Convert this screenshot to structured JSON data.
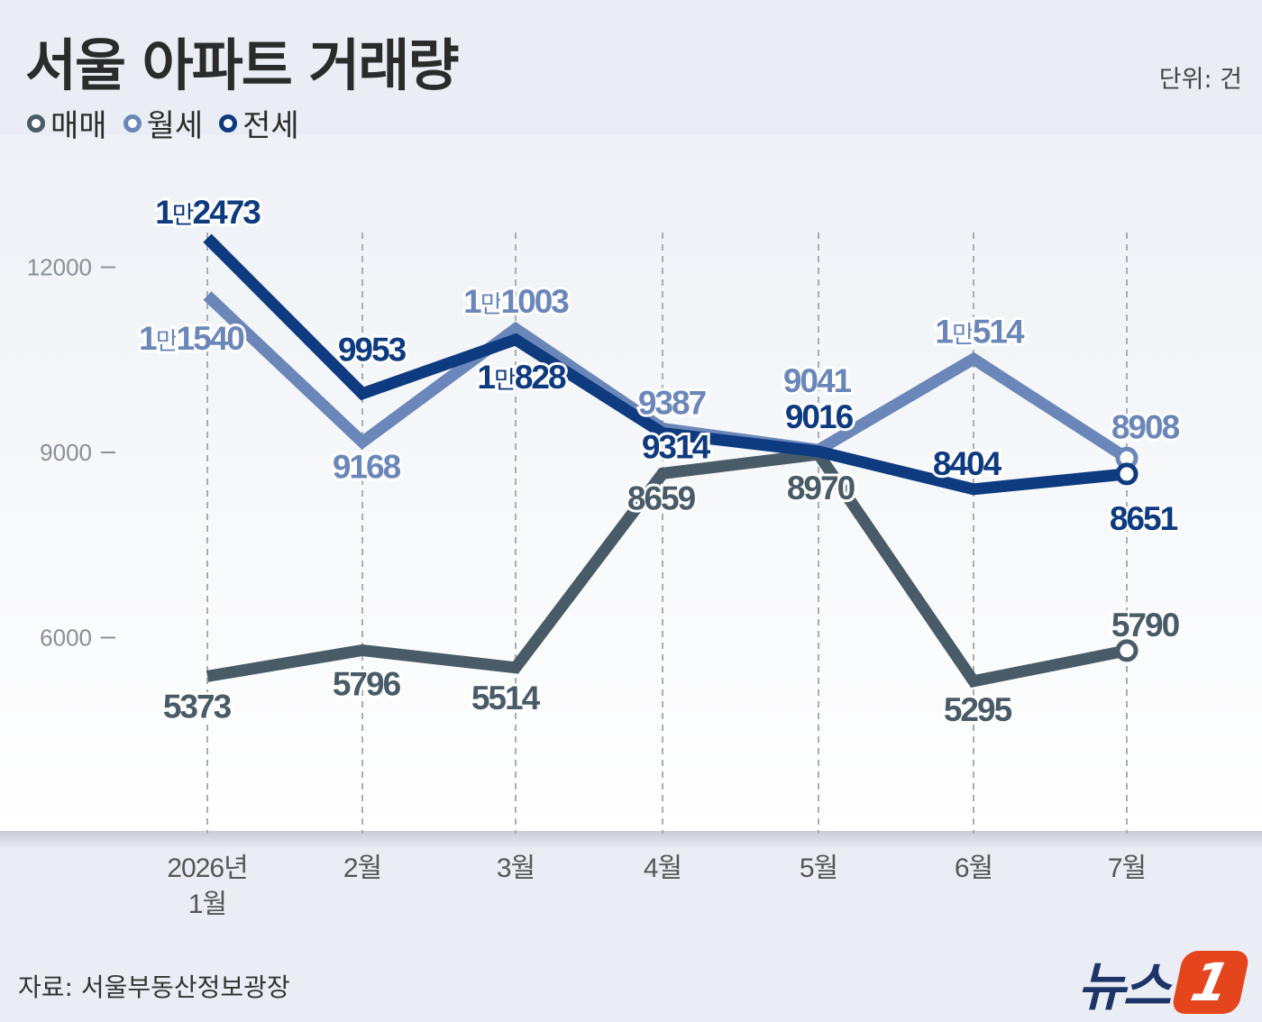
{
  "title": "서울 아파트 거래량",
  "unit_label": "단위: 건",
  "source": "자료: 서울부동산정보광장",
  "logo": {
    "text": "뉴스",
    "badge": "1"
  },
  "legend": [
    {
      "label": "매매",
      "color": "#485b66"
    },
    {
      "label": "월세",
      "color": "#6b87ba"
    },
    {
      "label": "전세",
      "color": "#0e3a80"
    }
  ],
  "chart_data": {
    "type": "line",
    "title": "서울 아파트 거래량",
    "unit": "단위: 건",
    "categories": [
      "2026년\n1월",
      "2월",
      "3월",
      "4월",
      "5월",
      "6월",
      "7월"
    ],
    "ylim": [
      3000,
      13500
    ],
    "yticks": [
      {
        "value": 12000,
        "label": "12000"
      },
      {
        "value": 9000,
        "label": "9000"
      },
      {
        "value": 6000,
        "label": "6000"
      }
    ],
    "grid": "vertical dashed lines",
    "legend_position": "top-left",
    "series": [
      {
        "name": "매매",
        "color": "#485b66",
        "values": [
          5373,
          5796,
          5514,
          8659,
          8970,
          5295,
          5790
        ],
        "labels": [
          "5373",
          "5796",
          "5514",
          "8659",
          "8970",
          "5295",
          "5790"
        ]
      },
      {
        "name": "월세",
        "color": "#6b87ba",
        "values": [
          11540,
          9168,
          11003,
          9387,
          9041,
          10514,
          8908
        ],
        "labels": [
          "1만1540",
          "9168",
          "1만1003",
          "9387",
          "9041",
          "1만514",
          "8908"
        ]
      },
      {
        "name": "전세",
        "color": "#0e3a80",
        "values": [
          12473,
          9953,
          10828,
          9314,
          9016,
          8404,
          8651
        ],
        "labels": [
          "1만2473",
          "9953",
          "1만828",
          "9314",
          "9016",
          "8404",
          "8651"
        ]
      }
    ]
  }
}
